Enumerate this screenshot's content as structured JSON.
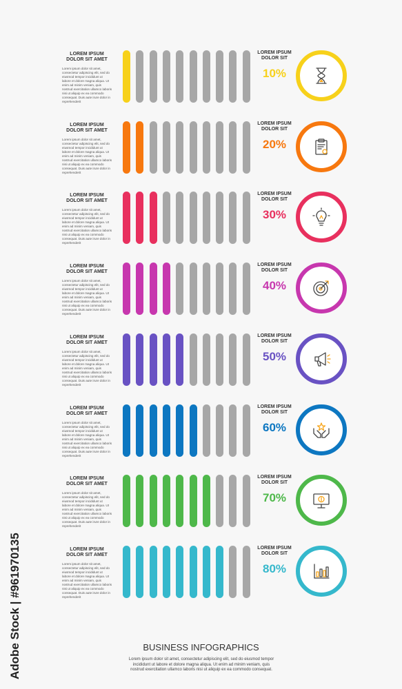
{
  "colors": {
    "inactive": "#a7a7a7",
    "rows": [
      "#f7d11b",
      "#f7780f",
      "#e8305e",
      "#c737ae",
      "#6952c3",
      "#0d77c1",
      "#4eb84a",
      "#35b8cc"
    ]
  },
  "rows": [
    {
      "heading": "LOREM IPSUM\nDOLOR SIT AMET",
      "body": "Lorem ipsum dolor sit amet, consectetur adipiscing elit, sed do eiusmod tempor incididunt ut labore et dolore magna aliqua. Ut enim ad minim veniam, quis nostrud exercitation ullamco laboris nisi ut aliquip ex ea commodo consequat. Duis aute irure dolor in reprehenderit",
      "label": "LOREM IPSUM\nDOLOR SIT",
      "percent": "10%",
      "filled": 1,
      "icon": "hourglass-icon"
    },
    {
      "heading": "LOREM IPSUM\nDOLOR SIT AMET",
      "body": "Lorem ipsum dolor sit amet, consectetur adipiscing elit, sed do eiusmod tempor incididunt ut labore et dolore magna aliqua. Ut enim ad minim veniam, quis nostrud exercitation ullamco laboris nisi ut aliquip ex ea commodo consequat. Duis aute irure dolor in reprehenderit",
      "label": "LOREM IPSUM\nDOLOR SIT",
      "percent": "20%",
      "filled": 2,
      "icon": "clipboard-icon"
    },
    {
      "heading": "LOREM IPSUM\nDOLOR SIT AMET",
      "body": "Lorem ipsum dolor sit amet, consectetur adipiscing elit, sed do eiusmod tempor incididunt ut labore et dolore magna aliqua. Ut enim ad minim veniam, quis nostrud exercitation ullamco laboris nisi ut aliquip ex ea commodo consequat. Duis aute irure dolor in reprehenderit",
      "label": "LOREM IPSUM\nDOLOR SIT",
      "percent": "30%",
      "filled": 3,
      "icon": "lightbulb-icon"
    },
    {
      "heading": "LOREM IPSUM\nDOLOR SIT AMET",
      "body": "Lorem ipsum dolor sit amet, consectetur adipiscing elit, sed do eiusmod tempor incididunt ut labore et dolore magna aliqua. Ut enim ad minim veniam, quis nostrud exercitation ullamco laboris nisi ut aliquip ex ea commodo consequat. Duis aute irure dolor in reprehenderit",
      "label": "LOREM IPSUM\nDOLOR SIT",
      "percent": "40%",
      "filled": 4,
      "icon": "target-icon"
    },
    {
      "heading": "LOREM IPSUM\nDOLOR SIT AMET",
      "body": "Lorem ipsum dolor sit amet, consectetur adipiscing elit, sed do eiusmod tempor incididunt ut labore et dolore magna aliqua. Ut enim ad minim veniam, quis nostrud exercitation ullamco laboris nisi ut aliquip ex ea commodo consequat. Duis aute irure dolor in reprehenderit",
      "label": "LOREM IPSUM\nDOLOR SIT",
      "percent": "50%",
      "filled": 5,
      "icon": "megaphone-icon"
    },
    {
      "heading": "LOREM IPSUM\nDOLOR SIT AMET",
      "body": "Lorem ipsum dolor sit amet, consectetur adipiscing elit, sed do eiusmod tempor incididunt ut labore et dolore magna aliqua. Ut enim ad minim veniam, quis nostrud exercitation ullamco laboris nisi ut aliquip ex ea commodo consequat. Duis aute irure dolor in reprehenderit",
      "label": "LOREM IPSUM\nDOLOR SIT",
      "percent": "60%",
      "filled": 6,
      "icon": "hands-star-icon"
    },
    {
      "heading": "LOREM IPSUM\nDOLOR SIT AMET",
      "body": "Lorem ipsum dolor sit amet, consectetur adipiscing elit, sed do eiusmod tempor incididunt ut labore et dolore magna aliqua. Ut enim ad minim veniam, quis nostrud exercitation ullamco laboris nisi ut aliquip ex ea commodo consequat. Duis aute irure dolor in reprehenderit",
      "label": "LOREM IPSUM\nDOLOR SIT",
      "percent": "70%",
      "filled": 7,
      "icon": "monitor-dollar-icon"
    },
    {
      "heading": "LOREM IPSUM\nDOLOR SIT AMET",
      "body": "Lorem ipsum dolor sit amet, consectetur adipiscing elit, sed do eiusmod tempor incididunt ut labore et dolore magna aliqua. Ut enim ad minim veniam, quis nostrud exercitation ullamco laboris nisi ut aliquip ex ea commodo consequat. Duis aute irure dolor in reprehenderit",
      "label": "LOREM IPSUM\nDOLOR SIT",
      "percent": "80%",
      "filled": 8,
      "icon": "bar-chart-icon"
    }
  ],
  "total_bars": 10,
  "footer": {
    "title": "BUSINESS INFOGRAPHICS",
    "text": "Lorem ipsum dolor sit amet, consectetur adipiscing elit, sed do eiusmod tempor incididunt ut labore et dolore magna aliqua. Ut enim ad minim veniam, quis nostrud exercitation ullamco laboris nisi ut aliquip ex ea commodo consequat."
  },
  "watermark": "Adobe Stock | #961970135"
}
